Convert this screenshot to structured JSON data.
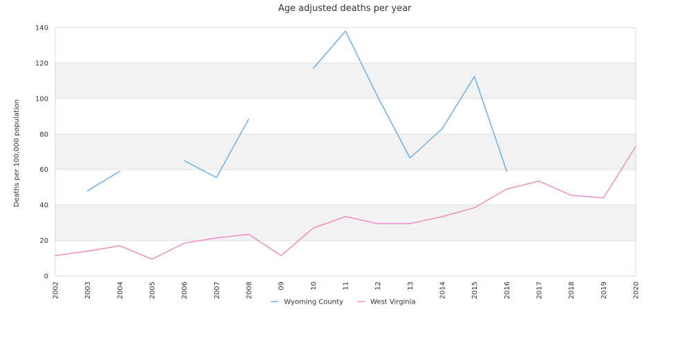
{
  "chart_data": {
    "type": "line",
    "title": "Age adjusted deaths per year",
    "xlabel": "",
    "ylabel": "Deaths per 100,000 population",
    "categories": [
      "2002",
      "2003",
      "2004",
      "2005",
      "2006",
      "2007",
      "2008",
      "09",
      "10",
      "11",
      "12",
      "13",
      "2014",
      "2015",
      "2016",
      "2017",
      "2018",
      "2019",
      "2020"
    ],
    "ylim": [
      0,
      140
    ],
    "yticks": [
      0,
      20,
      40,
      60,
      80,
      100,
      120,
      140
    ],
    "grid": "alternating horizontal bands",
    "legend_position": "bottom",
    "series": [
      {
        "name": "Wyoming County",
        "color": "#6ab0e8",
        "values": [
          null,
          48,
          59,
          null,
          65,
          55.5,
          88.5,
          null,
          117,
          138,
          101,
          66.5,
          83,
          112.5,
          59,
          null,
          null,
          null,
          null
        ]
      },
      {
        "name": "West Virginia",
        "color": "#f08cbc",
        "values": [
          11.5,
          14,
          17,
          9.5,
          18.5,
          21.5,
          23.5,
          11.5,
          27,
          33.5,
          29.5,
          29.5,
          33.5,
          38.5,
          49,
          53.5,
          45.5,
          44,
          73
        ]
      }
    ]
  }
}
